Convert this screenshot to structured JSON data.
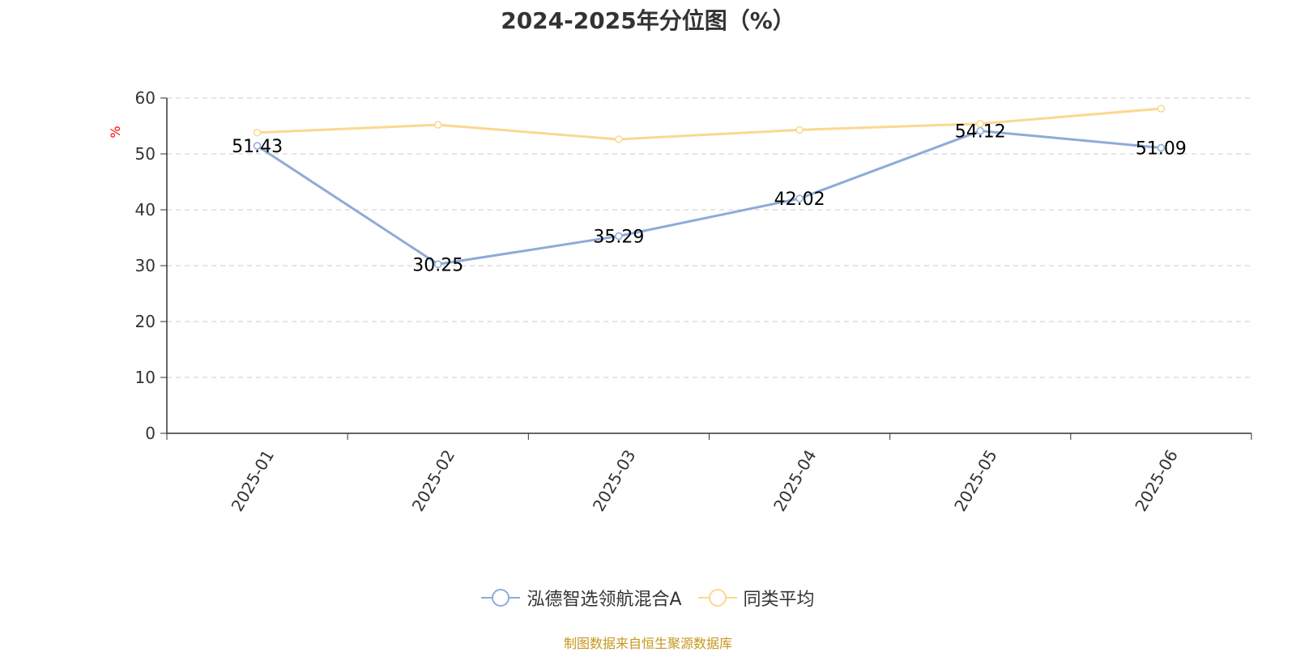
{
  "chart_data": {
    "type": "line",
    "title": "2024-2025年分位图（%）",
    "ylabel": "%",
    "xlabel": "",
    "categories": [
      "2025-01",
      "2025-02",
      "2025-03",
      "2025-04",
      "2025-05",
      "2025-06"
    ],
    "ylim": [
      0,
      60
    ],
    "yticks": [
      0,
      10,
      20,
      30,
      40,
      50,
      60
    ],
    "grid": true,
    "legend_position": "bottom",
    "series": [
      {
        "name": "泓德智选领航混合A",
        "color": "#8EABD8",
        "values": [
          51.43,
          30.25,
          35.29,
          42.02,
          54.12,
          51.09
        ],
        "show_labels": true
      },
      {
        "name": "同类平均",
        "color": "#FBD88F",
        "values": [
          53.8,
          55.2,
          52.6,
          54.3,
          55.4,
          58.1
        ],
        "show_labels": false
      }
    ]
  },
  "source_text": "制图数据来自恒生聚源数据库",
  "colors": {
    "axis": "#333333",
    "grid": "#cccccc",
    "ylabel": "#ff0000",
    "source": "#c8961e",
    "title": "#333333"
  }
}
